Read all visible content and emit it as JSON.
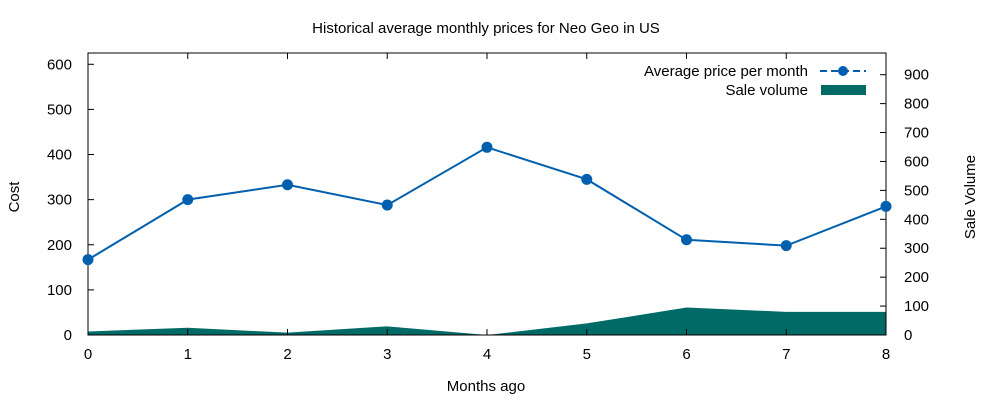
{
  "chart_data": {
    "type": "line",
    "title": "Historical average monthly prices for Neo Geo in US",
    "xlabel": "Months ago",
    "ylabel": "Cost",
    "y2label": "Sale Volume",
    "x": [
      0,
      1,
      2,
      3,
      4,
      5,
      6,
      7,
      8
    ],
    "xlim": [
      0,
      8
    ],
    "ylim": [
      0,
      625
    ],
    "y2lim": [
      0,
      975
    ],
    "yticks": [
      0,
      100,
      200,
      300,
      400,
      500,
      600
    ],
    "y2ticks": [
      0,
      100,
      200,
      300,
      400,
      500,
      600,
      700,
      800,
      900
    ],
    "grid": false,
    "legend_position": "top-right",
    "series": [
      {
        "name": "Average price per month",
        "kind": "line-points",
        "axis": "left",
        "color": "#0060ad",
        "values": [
          167,
          300,
          333,
          288,
          416,
          345,
          211,
          198,
          285
        ]
      },
      {
        "name": "Sale volume",
        "kind": "filled-area",
        "axis": "right",
        "color": "#006b66",
        "values": [
          12,
          25,
          8,
          30,
          0,
          40,
          95,
          80,
          80
        ]
      }
    ]
  }
}
